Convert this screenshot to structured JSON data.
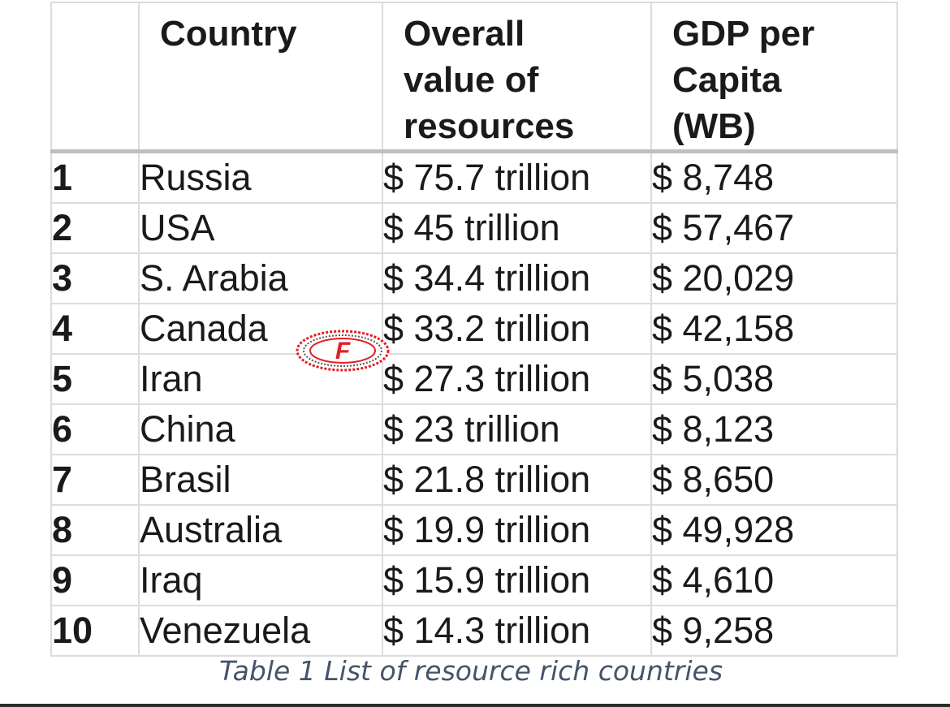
{
  "table": {
    "headers": {
      "rank": "",
      "country": "Country",
      "value_lines": [
        "Overall",
        "value of",
        "resources"
      ],
      "gdp_lines": [
        "GDP per",
        "Capita",
        "(WB)"
      ]
    },
    "rows": [
      {
        "rank": "1",
        "country": "Russia",
        "value": "$ 75.7 trillion",
        "gdp": "$ 8,748"
      },
      {
        "rank": "2",
        "country": "USA",
        "value": "$ 45 trillion",
        "gdp": "$ 57,467"
      },
      {
        "rank": "3",
        "country": "S. Arabia",
        "value": "$ 34.4 trillion",
        "gdp": "$ 20,029"
      },
      {
        "rank": "4",
        "country": "Canada",
        "value": "$ 33.2 trillion",
        "gdp": "$ 42,158"
      },
      {
        "rank": "5",
        "country": "Iran",
        "value": "$ 27.3 trillion",
        "gdp": "$ 5,038"
      },
      {
        "rank": "6",
        "country": "China",
        "value": "$ 23 trillion",
        "gdp": "$ 8,123"
      },
      {
        "rank": "7",
        "country": "Brasil",
        "value": "$ 21.8 trillion",
        "gdp": "$ 8,650"
      },
      {
        "rank": "8",
        "country": "Australia",
        "value": "$ 19.9 trillion",
        "gdp": "$ 49,928"
      },
      {
        "rank": "9",
        "country": "Iraq",
        "value": "$ 15.9 trillion",
        "gdp": "$ 4,610"
      },
      {
        "rank": "10",
        "country": "Venezuela",
        "value": "$ 14.3 trillion",
        "gdp": "$ 9,258"
      }
    ]
  },
  "caption": "Table 1 List of resource rich countries",
  "watermark": {
    "icon": "f-logo-icon",
    "letter": "F",
    "color": "#e31e24"
  }
}
